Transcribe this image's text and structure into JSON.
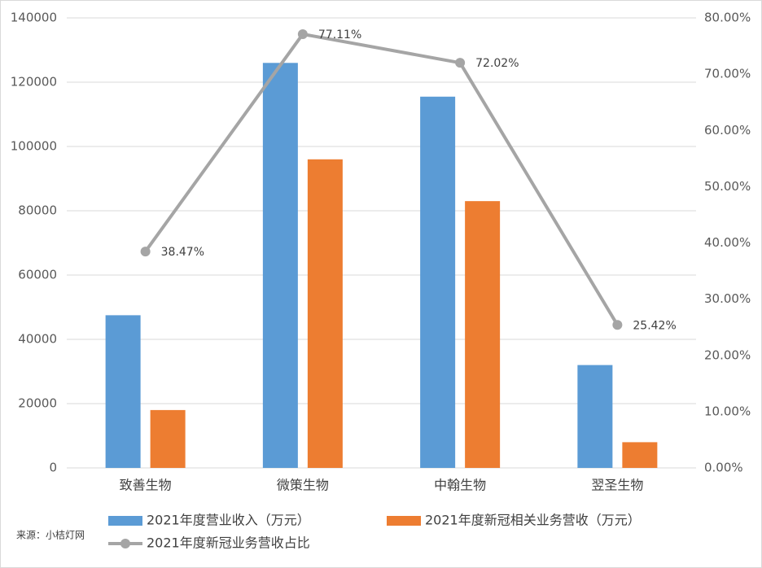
{
  "chart_data": {
    "type": "bar_line",
    "categories": [
      "致善生物",
      "微策生物",
      "中翰生物",
      "翌圣生物"
    ],
    "series": [
      {
        "name": "2021年度营业收入（万元）",
        "color": "#5b9bd5",
        "type": "bar",
        "values": [
          47500,
          126000,
          115500,
          32000
        ]
      },
      {
        "name": "2021年度新冠相关业务营收（万元）",
        "color": "#ed7d31",
        "type": "bar",
        "values": [
          18000,
          96000,
          83000,
          8000
        ]
      },
      {
        "name": "2021年度新冠业务营收占比",
        "color": "#a5a5a5",
        "type": "line",
        "axis": "y2",
        "values": [
          38.47,
          77.11,
          72.02,
          25.42
        ],
        "value_labels": [
          "38.47%",
          "77.11%",
          "72.02%",
          "25.42%"
        ]
      }
    ],
    "ylim": [
      0,
      140000
    ],
    "yticks": [
      0,
      20000,
      40000,
      60000,
      80000,
      100000,
      120000,
      140000
    ],
    "y2lim": [
      0,
      80
    ],
    "y2ticks": [
      {
        "value": 0,
        "label": "0.00%"
      },
      {
        "value": 10,
        "label": "10.00%"
      },
      {
        "value": 20,
        "label": "20.00%"
      },
      {
        "value": 30,
        "label": "30.00%"
      },
      {
        "value": 40,
        "label": "40.00%"
      },
      {
        "value": 50,
        "label": "50.00%"
      },
      {
        "value": 60,
        "label": "60.00%"
      },
      {
        "value": 70,
        "label": "70.00%"
      },
      {
        "value": 80,
        "label": "80.00%"
      }
    ],
    "grid": true,
    "legend": "bottom",
    "note": "来源：小桔灯网"
  }
}
